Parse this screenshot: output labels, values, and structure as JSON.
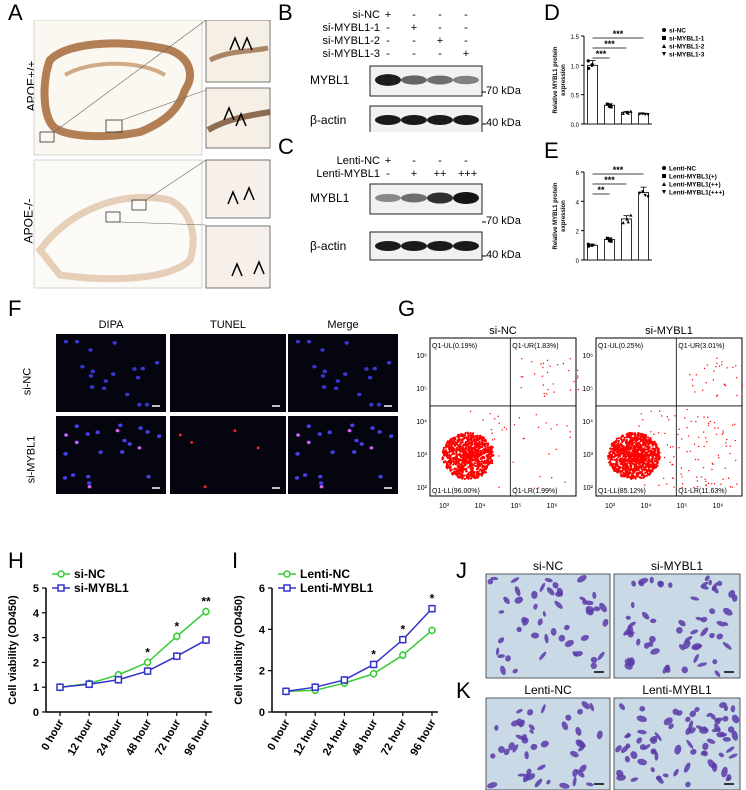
{
  "panel_labels": [
    "A",
    "B",
    "C",
    "D",
    "E",
    "F",
    "G",
    "H",
    "I",
    "J",
    "K"
  ],
  "panelA": {
    "labels": [
      "APOE+/+",
      "APOE-/-"
    ]
  },
  "panelB": {
    "row_labels": [
      "si-NC",
      "si-MYBL1-1",
      "si-MYBL1-2",
      "si-MYBL1-3"
    ],
    "signs": [
      [
        "+",
        "-",
        "-",
        "-"
      ],
      [
        "-",
        "+",
        "-",
        "-"
      ],
      [
        "-",
        "-",
        "+",
        "-"
      ],
      [
        "-",
        "-",
        "-",
        "+"
      ]
    ],
    "bands": [
      "MYBL1",
      "β-actin"
    ],
    "kda": [
      "70 kDa",
      "40 kDa"
    ],
    "band_intensity": [
      0.95,
      0.55,
      0.5,
      0.4
    ]
  },
  "panelC": {
    "row_labels": [
      "Lenti-NC",
      "Lenti-MYBL1"
    ],
    "signs": [
      [
        "+",
        "-",
        "-",
        "-"
      ],
      [
        "-",
        "+",
        "++",
        "+++"
      ]
    ],
    "bands": [
      "MYBL1",
      "β-actin"
    ],
    "kda": [
      "70 kDa",
      "40 kDa"
    ],
    "band_intensity": [
      0.35,
      0.5,
      0.85,
      1.0
    ]
  },
  "panelF": {
    "col_titles": [
      "DIPA",
      "TUNEL",
      "Merge"
    ],
    "row_labels": [
      "si-NC",
      "si-MYBL1"
    ]
  },
  "panelG": {
    "plots": [
      {
        "title": "si-NC",
        "quadrants": [
          "Q1-UL(0.19%)",
          "Q1-UR(1.83%)",
          "Q1-LL(96.00%)",
          "Q1-LR(1.99%)"
        ]
      },
      {
        "title": "si-MYBL1",
        "quadrants": [
          "Q1-UL(0.25%)",
          "Q1-UR(3.01%)",
          "Q1-LL(85.12%)",
          "Q1-LR(11.63%)"
        ]
      }
    ],
    "axis_ticks": [
      "10³",
      "10⁴",
      "10⁵",
      "10⁶"
    ],
    "y_ticks": [
      "10⁶",
      "10⁵",
      "10⁴",
      "10³",
      "10²"
    ]
  },
  "panelJ": {
    "titles": [
      "si-NC",
      "si-MYBL1"
    ]
  },
  "panelK": {
    "titles": [
      "Lenti-NC",
      "Lenti-MYBL1"
    ]
  },
  "chart_data": [
    {
      "type": "bar",
      "panel": "D",
      "categories": [
        "si-NC",
        "si-MYBL1-1",
        "si-MYBL1-2",
        "si-MYBL1-3"
      ],
      "values": [
        1.0,
        0.32,
        0.2,
        0.17
      ],
      "ylabel": "Relative MYBL1 protein expression",
      "ylim": [
        0,
        1.5
      ],
      "yticks": [
        "0.0",
        "0.5",
        "1.0",
        "1.5"
      ],
      "significance": [
        "***",
        "***",
        "***"
      ],
      "legend": [
        "si-NC",
        "si-MYBL1-1",
        "si-MYBL1-2",
        "si-MYBL1-3"
      ],
      "legend_position": "right"
    },
    {
      "type": "bar",
      "panel": "E",
      "categories": [
        "Lenti-NC",
        "Lenti-MYBL1(+)",
        "Lenti-MYBL1(++)",
        "Lenti-MYBL1(+++)"
      ],
      "values": [
        1.0,
        1.4,
        2.8,
        4.6
      ],
      "ylabel": "Relative MYBL1 protein expression",
      "ylim": [
        0,
        6
      ],
      "yticks": [
        "0",
        "2",
        "4",
        "6"
      ],
      "significance": [
        "**",
        "***",
        "***"
      ],
      "legend": [
        "Lenti-NC",
        "Lenti-MYBL1(+)",
        "Lenti-MYBL1(++)",
        "Lenti-MYBL1(+++)"
      ],
      "legend_position": "right"
    },
    {
      "type": "line",
      "panel": "H",
      "categories": [
        "0 hour",
        "12 hour",
        "24 hour",
        "48 hour",
        "72 hour",
        "96 hour"
      ],
      "series": [
        {
          "name": "si-NC",
          "values": [
            1.0,
            1.15,
            1.5,
            2.0,
            3.05,
            4.05
          ],
          "color": "#33cc33"
        },
        {
          "name": "si-MYBL1",
          "values": [
            1.0,
            1.12,
            1.3,
            1.65,
            2.25,
            2.9
          ],
          "color": "#3333cc"
        }
      ],
      "ylabel": "Cell viability (OD450)",
      "ylim": [
        0,
        5
      ],
      "yticks": [
        "0",
        "1",
        "2",
        "3",
        "4",
        "5"
      ],
      "significance": [
        "",
        "",
        "",
        "*",
        "*",
        "**"
      ],
      "legend_position": "top-left"
    },
    {
      "type": "line",
      "panel": "I",
      "categories": [
        "0 hour",
        "12 hour",
        "24 hour",
        "48 hour",
        "72 hour",
        "96 hour"
      ],
      "series": [
        {
          "name": "Lenti-NC",
          "values": [
            1.0,
            1.05,
            1.4,
            1.85,
            2.75,
            3.95
          ],
          "color": "#33cc33"
        },
        {
          "name": "Lenti-MYBL1",
          "values": [
            1.0,
            1.2,
            1.55,
            2.3,
            3.5,
            5.0
          ],
          "color": "#3333cc"
        }
      ],
      "ylabel": "Cell viability (OD450)",
      "ylim": [
        0,
        6
      ],
      "yticks": [
        "0",
        "2",
        "4",
        "6"
      ],
      "significance": [
        "",
        "",
        "",
        "*",
        "*",
        "*"
      ],
      "legend_position": "top-left"
    }
  ]
}
